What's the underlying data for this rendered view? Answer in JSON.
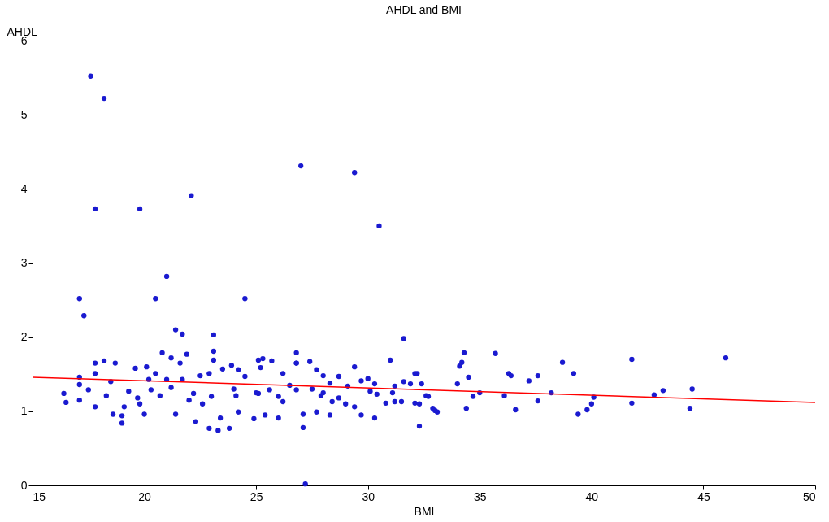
{
  "chart_data": {
    "type": "scatter",
    "title": "AHDL and BMI",
    "xlabel": "BMI",
    "ylabel": "AHDL",
    "xlim": [
      15,
      50
    ],
    "xticks": [
      15,
      20,
      25,
      30,
      35,
      40,
      45,
      50
    ],
    "ylim": [
      0,
      6
    ],
    "yticks": [
      0,
      1,
      2,
      3,
      4,
      5,
      6
    ],
    "grid": false,
    "marker": "circle",
    "series": [
      {
        "color": "#1a1ad0",
        "x": [
          17.6,
          18.2,
          17.8,
          19.8,
          22.1,
          27.0,
          29.4,
          30.5,
          21.0,
          17.1,
          17.3,
          20.5,
          24.5,
          21.4,
          21.7,
          23.1,
          31.6,
          27.2,
          46.0,
          44.5,
          44.4,
          43.2,
          42.8,
          41.8,
          41.8,
          40.1,
          40.0,
          39.8,
          39.4,
          39.2,
          38.7,
          38.2,
          37.6,
          37.6,
          37.2,
          36.6,
          36.3,
          36.4,
          35.7,
          36.1,
          35.0,
          34.7,
          34.5,
          34.4,
          34.3,
          34.2,
          34.1,
          34.0,
          33.1,
          32.9,
          32.6,
          32.3,
          32.2,
          32.3,
          31.0,
          32.1,
          32.4,
          32.7,
          32.1,
          33.0,
          31.9,
          31.6,
          31.5,
          31.2,
          31.1,
          31.2,
          30.8,
          30.3,
          30.4,
          30.3,
          30.1,
          30.0,
          29.7,
          29.4,
          29.4,
          29.7,
          29.1,
          28.7,
          29.0,
          28.7,
          28.3,
          28.3,
          28.0,
          27.7,
          27.4,
          26.8,
          26.8,
          27.1,
          27.1,
          27.7,
          27.9,
          28.4,
          26.8,
          20.8,
          21.2,
          21.9,
          23.1,
          23.1,
          21.6,
          17.8,
          18.2,
          18.7,
          17.8,
          17.1,
          17.1,
          16.4,
          16.5,
          17.1,
          17.5,
          17.8,
          18.6,
          19.0,
          19.0,
          19.6,
          20.1,
          20.0,
          19.3,
          19.7,
          18.3,
          18.5,
          20.3,
          20.5,
          21.0,
          21.2,
          20.7,
          21.4,
          21.7,
          22.2,
          22.3,
          22.5,
          22.9,
          22.6,
          22.9,
          23.3,
          23.8,
          23.4,
          23.5,
          23.9,
          24.2,
          24.5,
          24.1,
          24.2,
          24.9,
          25.4,
          26.0,
          25.1,
          25.3,
          25.7,
          25.2,
          26.2,
          25.1,
          25.6,
          26.2,
          26.8,
          19.8,
          19.1,
          20.2,
          24.0,
          25.0,
          26.0,
          23.0,
          22.0,
          27.5,
          28.0,
          26.5
        ],
        "values": [
          5.52,
          5.22,
          3.73,
          3.73,
          3.91,
          4.31,
          4.22,
          3.5,
          2.82,
          2.52,
          2.29,
          2.52,
          2.52,
          2.1,
          2.04,
          2.03,
          1.98,
          0.02,
          1.72,
          1.3,
          1.04,
          1.28,
          1.22,
          1.7,
          1.11,
          1.19,
          1.1,
          1.02,
          0.96,
          1.51,
          1.66,
          1.25,
          1.14,
          1.48,
          1.41,
          1.02,
          1.51,
          1.48,
          1.78,
          1.21,
          1.25,
          1.2,
          1.46,
          1.04,
          1.79,
          1.66,
          1.61,
          1.37,
          0.99,
          1.04,
          1.21,
          1.1,
          1.51,
          0.8,
          1.69,
          1.51,
          1.37,
          1.2,
          1.11,
          1.01,
          1.37,
          1.4,
          1.13,
          1.13,
          1.25,
          1.34,
          1.11,
          0.91,
          1.23,
          1.37,
          1.27,
          1.44,
          1.41,
          1.6,
          1.06,
          0.95,
          1.34,
          1.47,
          1.1,
          1.18,
          1.38,
          0.95,
          1.48,
          1.56,
          1.67,
          1.79,
          1.65,
          0.78,
          0.96,
          0.99,
          1.21,
          1.13,
          1.29,
          1.79,
          1.72,
          1.77,
          1.81,
          1.69,
          1.65,
          1.65,
          1.68,
          1.65,
          1.51,
          1.46,
          1.36,
          1.24,
          1.12,
          1.15,
          1.29,
          1.06,
          0.96,
          0.84,
          0.94,
          1.58,
          1.6,
          0.96,
          1.27,
          1.18,
          1.21,
          1.4,
          1.29,
          1.51,
          1.43,
          1.32,
          1.21,
          0.96,
          1.43,
          1.24,
          0.86,
          1.48,
          1.51,
          1.1,
          0.77,
          0.74,
          0.77,
          0.91,
          1.57,
          1.62,
          1.56,
          1.47,
          1.21,
          0.99,
          0.9,
          0.95,
          0.91,
          1.69,
          1.71,
          1.68,
          1.59,
          1.51,
          1.24,
          1.29,
          1.13,
          1.65,
          1.1,
          1.06,
          1.43,
          1.3,
          1.25,
          1.2,
          1.2,
          1.15,
          1.3,
          1.25,
          1.35
        ]
      },
      {
        "type": "line",
        "marker": "none",
        "color": "#ff0000",
        "x": [
          15,
          50
        ],
        "values": [
          1.46,
          1.12
        ]
      }
    ]
  }
}
